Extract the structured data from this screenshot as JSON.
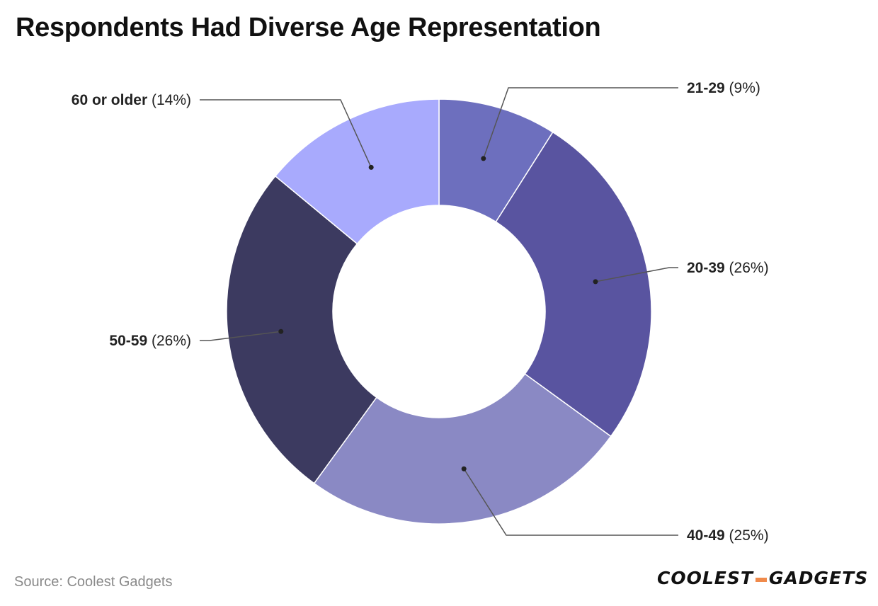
{
  "title": "Respondents Had Diverse Age Representation",
  "source": "Source: Coolest Gadgets",
  "logo": {
    "left": "COOLEST",
    "right": "GADGETS",
    "accent_color": "#f08a4b"
  },
  "chart_data": {
    "type": "pie",
    "variant": "donut",
    "start_angle_deg": 0,
    "direction": "clockwise",
    "slices": [
      {
        "label": "21-29",
        "pct_label": "(9%)",
        "value": 9,
        "color": "#6d6fbe"
      },
      {
        "label": "20-39",
        "pct_label": "(26%)",
        "value": 26,
        "color": "#5954a0"
      },
      {
        "label": "40-49",
        "pct_label": "(25%)",
        "value": 25,
        "color": "#8a89c4"
      },
      {
        "label": "50-59",
        "pct_label": "(26%)",
        "value": 26,
        "color": "#3c3a60"
      },
      {
        "label": "60 or older",
        "pct_label": "(14%)",
        "value": 14,
        "color": "#a8aafd"
      }
    ]
  }
}
